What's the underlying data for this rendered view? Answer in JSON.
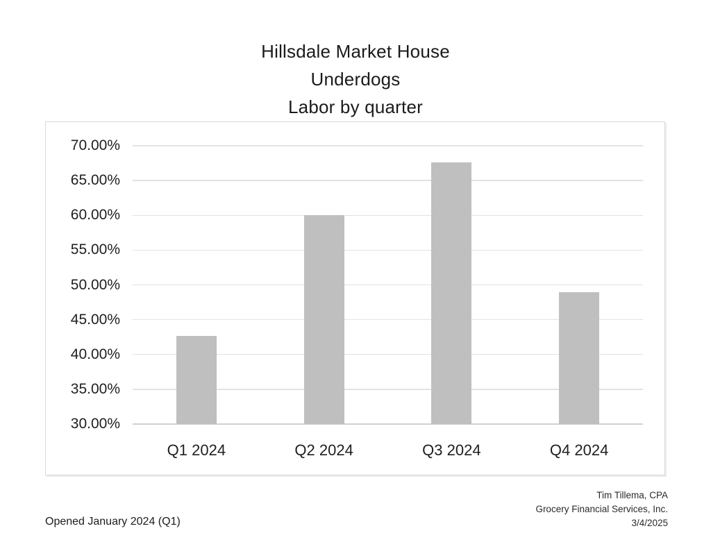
{
  "title": {
    "line1": "Hillsdale Market House",
    "line2": "Underdogs",
    "line3": "Labor by quarter"
  },
  "footer_left": "Opened January 2024 (Q1)",
  "footer_right": {
    "line1": "Tim Tillema, CPA",
    "line2": "Grocery Financial Services, Inc.",
    "line3": "3/4/2025"
  },
  "colors": {
    "bar": "#bfbfbf",
    "gridline": "#e2e2e2",
    "axis_line": "#d2d2d2",
    "chart_border": "#d8d8d8",
    "text": "#1f1f1f"
  },
  "chart_data": {
    "type": "bar",
    "title": "Hillsdale Market House Underdogs Labor by quarter",
    "categories": [
      "Q1 2024",
      "Q2 2024",
      "Q3 2024",
      "Q4 2024"
    ],
    "values": [
      42.7,
      60.0,
      67.6,
      49.0
    ],
    "unit": "%",
    "xlabel": "",
    "ylabel": "",
    "ylim": [
      30,
      70
    ],
    "ytick_step": 5,
    "ytick_labels_top_to_bottom": [
      "70.00%",
      "65.00%",
      "60.00%",
      "55.00%",
      "50.00%",
      "45.00%",
      "40.00%",
      "35.00%",
      "30.00%"
    ],
    "grid": true,
    "legend": false,
    "bar_color": "#bfbfbf"
  }
}
